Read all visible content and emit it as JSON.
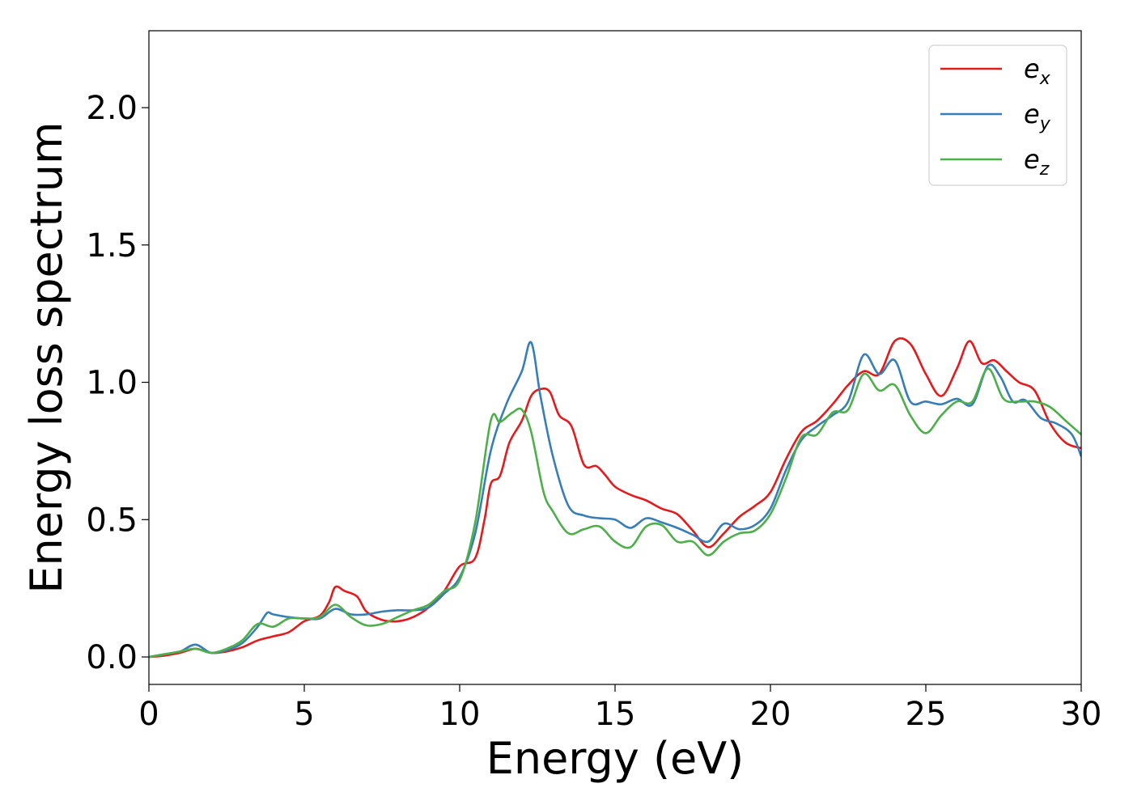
{
  "chart_data": {
    "type": "line",
    "title": "",
    "xlabel": "Energy (eV)",
    "ylabel": "Energy loss spectrum",
    "xlim": [
      0,
      30
    ],
    "ylim": [
      -0.1,
      2.28
    ],
    "xticks": [
      0,
      5,
      10,
      15,
      20,
      25,
      30
    ],
    "xtick_labels": [
      "0",
      "5",
      "10",
      "15",
      "20",
      "25",
      "30"
    ],
    "yticks": [
      0.0,
      0.5,
      1.0,
      1.5,
      2.0
    ],
    "ytick_labels": [
      "0.0",
      "0.5",
      "1.0",
      "1.5",
      "2.0"
    ],
    "grid": false,
    "legend_position": "top-right",
    "series": [
      {
        "name": "e",
        "subscript": "x",
        "color": "#e41a1c",
        "points": [
          [
            0,
            0
          ],
          [
            0.5,
            0.005
          ],
          [
            1,
            0.015
          ],
          [
            1.5,
            0.03
          ],
          [
            2,
            0.015
          ],
          [
            2.5,
            0.02
          ],
          [
            3,
            0.035
          ],
          [
            3.5,
            0.06
          ],
          [
            4,
            0.075
          ],
          [
            4.5,
            0.09
          ],
          [
            5,
            0.13
          ],
          [
            5.5,
            0.15
          ],
          [
            5.8,
            0.2
          ],
          [
            6,
            0.255
          ],
          [
            6.3,
            0.24
          ],
          [
            6.7,
            0.22
          ],
          [
            7,
            0.165
          ],
          [
            7.5,
            0.135
          ],
          [
            8,
            0.13
          ],
          [
            8.5,
            0.145
          ],
          [
            9,
            0.18
          ],
          [
            9.5,
            0.24
          ],
          [
            10,
            0.33
          ],
          [
            10.5,
            0.36
          ],
          [
            10.8,
            0.5
          ],
          [
            11,
            0.63
          ],
          [
            11.3,
            0.66
          ],
          [
            11.6,
            0.78
          ],
          [
            12,
            0.86
          ],
          [
            12.3,
            0.95
          ],
          [
            12.6,
            0.975
          ],
          [
            12.9,
            0.965
          ],
          [
            13.2,
            0.88
          ],
          [
            13.6,
            0.84
          ],
          [
            14,
            0.7
          ],
          [
            14.4,
            0.695
          ],
          [
            14.7,
            0.66
          ],
          [
            15,
            0.62
          ],
          [
            15.5,
            0.59
          ],
          [
            16,
            0.57
          ],
          [
            16.5,
            0.54
          ],
          [
            17,
            0.52
          ],
          [
            17.5,
            0.46
          ],
          [
            18,
            0.4
          ],
          [
            18.5,
            0.45
          ],
          [
            19,
            0.51
          ],
          [
            19.5,
            0.55
          ],
          [
            20,
            0.6
          ],
          [
            20.5,
            0.72
          ],
          [
            21,
            0.82
          ],
          [
            21.5,
            0.86
          ],
          [
            22,
            0.92
          ],
          [
            22.5,
            0.99
          ],
          [
            23,
            1.04
          ],
          [
            23.5,
            1.03
          ],
          [
            24,
            1.15
          ],
          [
            24.5,
            1.14
          ],
          [
            25,
            1.03
          ],
          [
            25.5,
            0.95
          ],
          [
            26,
            1.05
          ],
          [
            26.4,
            1.15
          ],
          [
            26.8,
            1.07
          ],
          [
            27.2,
            1.08
          ],
          [
            27.6,
            1.04
          ],
          [
            28,
            1.0
          ],
          [
            28.5,
            0.97
          ],
          [
            29,
            0.85
          ],
          [
            29.5,
            0.78
          ],
          [
            30,
            0.76
          ]
        ]
      },
      {
        "name": "e",
        "subscript": "y",
        "color": "#377eb8",
        "points": [
          [
            0,
            0
          ],
          [
            0.5,
            0.01
          ],
          [
            1,
            0.02
          ],
          [
            1.5,
            0.045
          ],
          [
            2,
            0.015
          ],
          [
            2.5,
            0.025
          ],
          [
            3,
            0.05
          ],
          [
            3.5,
            0.11
          ],
          [
            3.8,
            0.16
          ],
          [
            4,
            0.155
          ],
          [
            4.5,
            0.145
          ],
          [
            5,
            0.14
          ],
          [
            5.5,
            0.14
          ],
          [
            6,
            0.175
          ],
          [
            6.5,
            0.155
          ],
          [
            7,
            0.155
          ],
          [
            7.5,
            0.165
          ],
          [
            8,
            0.17
          ],
          [
            8.5,
            0.17
          ],
          [
            9,
            0.18
          ],
          [
            9.5,
            0.23
          ],
          [
            10,
            0.29
          ],
          [
            10.5,
            0.45
          ],
          [
            11,
            0.75
          ],
          [
            11.5,
            0.92
          ],
          [
            12,
            1.04
          ],
          [
            12.3,
            1.145
          ],
          [
            12.6,
            0.95
          ],
          [
            13,
            0.73
          ],
          [
            13.5,
            0.55
          ],
          [
            14,
            0.515
          ],
          [
            14.5,
            0.505
          ],
          [
            15,
            0.5
          ],
          [
            15.5,
            0.47
          ],
          [
            16,
            0.505
          ],
          [
            16.5,
            0.49
          ],
          [
            17,
            0.47
          ],
          [
            17.5,
            0.445
          ],
          [
            18,
            0.42
          ],
          [
            18.5,
            0.485
          ],
          [
            19,
            0.465
          ],
          [
            19.5,
            0.48
          ],
          [
            20,
            0.54
          ],
          [
            20.5,
            0.68
          ],
          [
            21,
            0.79
          ],
          [
            21.5,
            0.84
          ],
          [
            22,
            0.88
          ],
          [
            22.5,
            0.93
          ],
          [
            23,
            1.1
          ],
          [
            23.5,
            1.03
          ],
          [
            24,
            1.08
          ],
          [
            24.5,
            0.93
          ],
          [
            25,
            0.93
          ],
          [
            25.5,
            0.92
          ],
          [
            26,
            0.94
          ],
          [
            26.5,
            0.92
          ],
          [
            27,
            1.06
          ],
          [
            27.4,
            1.02
          ],
          [
            27.8,
            0.93
          ],
          [
            28.2,
            0.935
          ],
          [
            28.7,
            0.87
          ],
          [
            29.2,
            0.85
          ],
          [
            29.7,
            0.81
          ],
          [
            30,
            0.73
          ]
        ]
      },
      {
        "name": "e",
        "subscript": "z",
        "color": "#4daf4a",
        "points": [
          [
            0,
            0
          ],
          [
            0.5,
            0.01
          ],
          [
            1,
            0.02
          ],
          [
            1.5,
            0.03
          ],
          [
            2,
            0.015
          ],
          [
            2.5,
            0.03
          ],
          [
            3,
            0.06
          ],
          [
            3.5,
            0.12
          ],
          [
            4,
            0.11
          ],
          [
            4.5,
            0.14
          ],
          [
            5,
            0.14
          ],
          [
            5.5,
            0.145
          ],
          [
            6,
            0.19
          ],
          [
            6.5,
            0.145
          ],
          [
            7,
            0.115
          ],
          [
            7.5,
            0.12
          ],
          [
            8,
            0.145
          ],
          [
            8.5,
            0.17
          ],
          [
            9,
            0.19
          ],
          [
            9.5,
            0.24
          ],
          [
            10,
            0.28
          ],
          [
            10.5,
            0.49
          ],
          [
            11,
            0.86
          ],
          [
            11.3,
            0.855
          ],
          [
            11.7,
            0.89
          ],
          [
            12,
            0.9
          ],
          [
            12.3,
            0.82
          ],
          [
            12.7,
            0.6
          ],
          [
            13,
            0.53
          ],
          [
            13.5,
            0.45
          ],
          [
            14,
            0.465
          ],
          [
            14.5,
            0.475
          ],
          [
            15,
            0.42
          ],
          [
            15.5,
            0.4
          ],
          [
            16,
            0.475
          ],
          [
            16.5,
            0.48
          ],
          [
            17,
            0.42
          ],
          [
            17.5,
            0.42
          ],
          [
            18,
            0.37
          ],
          [
            18.5,
            0.42
          ],
          [
            19,
            0.45
          ],
          [
            19.5,
            0.46
          ],
          [
            20,
            0.52
          ],
          [
            20.5,
            0.65
          ],
          [
            21,
            0.8
          ],
          [
            21.5,
            0.81
          ],
          [
            22,
            0.89
          ],
          [
            22.5,
            0.9
          ],
          [
            23,
            1.03
          ],
          [
            23.5,
            0.97
          ],
          [
            24,
            0.99
          ],
          [
            24.5,
            0.88
          ],
          [
            25,
            0.815
          ],
          [
            25.5,
            0.88
          ],
          [
            26,
            0.93
          ],
          [
            26.5,
            0.93
          ],
          [
            27,
            1.05
          ],
          [
            27.5,
            0.94
          ],
          [
            28,
            0.93
          ],
          [
            28.5,
            0.93
          ],
          [
            29,
            0.91
          ],
          [
            29.5,
            0.86
          ],
          [
            30,
            0.81
          ]
        ]
      }
    ]
  }
}
